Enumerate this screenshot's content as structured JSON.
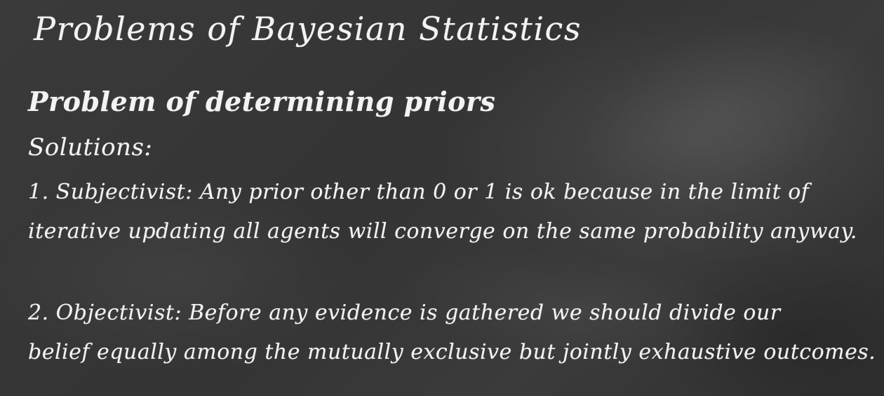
{
  "title": "Problems of Bayesian  Statistics",
  "heading": "Problem of determining priors",
  "solutions_label": "Solutions:",
  "solution1": {
    "line1": "1. Subjectivist:  Any prior other than 0 or 1 is ok because in the limit of",
    "line2": "iterative updating all agents will converge on the same probability anyway."
  },
  "solution2": {
    "line1": "2. Objectivist: Before any evidence is gathered we should divide our",
    "line2": "belief equally among the mutually exclusive but jointly exhaustive outcomes."
  },
  "colors": {
    "background": "#383838",
    "chalk": "#f3f3f3"
  }
}
